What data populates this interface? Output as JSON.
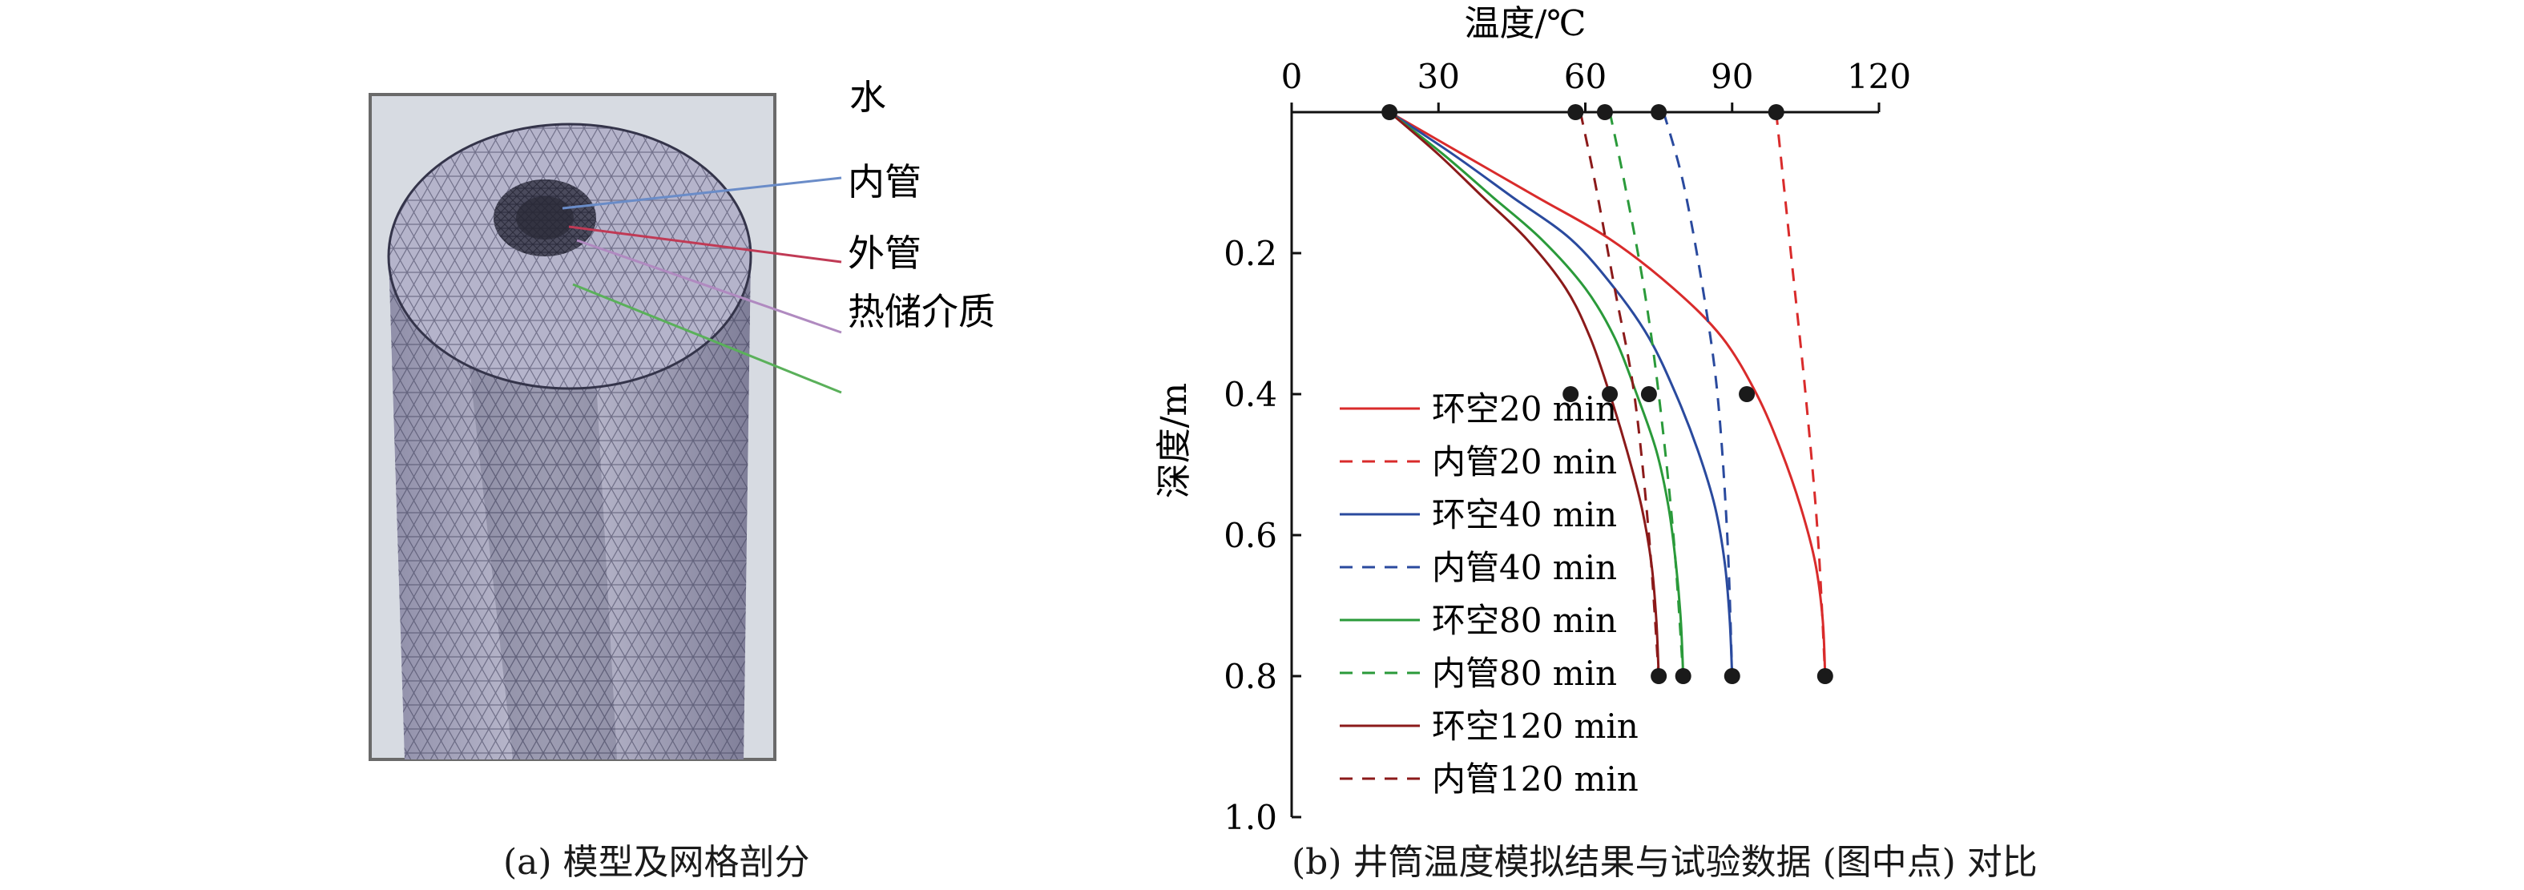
{
  "figure": {
    "panel_a": {
      "caption": "(a) 模型及网格剖分",
      "labels": {
        "water": "水",
        "inner_pipe": "内管",
        "outer_pipe": "外管",
        "medium": "热储介质"
      }
    },
    "panel_b": {
      "caption": "(b) 井筒温度模拟结果与试验数据 (图中点) 对比"
    }
  },
  "chart_data": {
    "type": "line",
    "title": "",
    "xlabel": "温度/℃",
    "ylabel": "深度/m",
    "xlim": [
      0,
      120
    ],
    "ylim": [
      0,
      1.0
    ],
    "y_inverted": true,
    "x_axis_position": "top",
    "x_ticks": [
      "0",
      "30",
      "60",
      "90",
      "120"
    ],
    "y_ticks": [
      "0.2",
      "0.4",
      "0.6",
      "0.8",
      "1.0"
    ],
    "grid": false,
    "legend_position": "left",
    "series": [
      {
        "name": "环空20 min",
        "color": "#d92b2b",
        "dash": "solid",
        "points": [
          [
            20,
            0
          ],
          [
            35,
            0.06
          ],
          [
            50,
            0.12
          ],
          [
            65,
            0.18
          ],
          [
            78,
            0.25
          ],
          [
            88,
            0.32
          ],
          [
            95,
            0.4
          ],
          [
            100,
            0.48
          ],
          [
            104,
            0.56
          ],
          [
            107,
            0.64
          ],
          [
            108.5,
            0.72
          ],
          [
            109,
            0.8
          ]
        ]
      },
      {
        "name": "内管20 min",
        "color": "#d92b2b",
        "dash": "dashed",
        "points": [
          [
            99,
            0
          ],
          [
            102,
            0.2
          ],
          [
            105,
            0.4
          ],
          [
            107.5,
            0.6
          ],
          [
            109,
            0.8
          ]
        ]
      },
      {
        "name": "环空40 min",
        "color": "#2a4a9e",
        "dash": "solid",
        "points": [
          [
            20,
            0
          ],
          [
            33,
            0.06
          ],
          [
            45,
            0.12
          ],
          [
            57,
            0.18
          ],
          [
            66,
            0.25
          ],
          [
            73,
            0.32
          ],
          [
            78.5,
            0.4
          ],
          [
            83,
            0.48
          ],
          [
            86.5,
            0.56
          ],
          [
            88.5,
            0.64
          ],
          [
            89.5,
            0.72
          ],
          [
            90,
            0.8
          ]
        ]
      },
      {
        "name": "内管40 min",
        "color": "#2a4a9e",
        "dash": "dashed",
        "points": [
          [
            76,
            0
          ],
          [
            80,
            0.1
          ],
          [
            84,
            0.25
          ],
          [
            87,
            0.4
          ],
          [
            89,
            0.6
          ],
          [
            90,
            0.8
          ]
        ]
      },
      {
        "name": "环空80 min",
        "color": "#2a9a3a",
        "dash": "solid",
        "points": [
          [
            20,
            0
          ],
          [
            31,
            0.06
          ],
          [
            41,
            0.12
          ],
          [
            51,
            0.18
          ],
          [
            60,
            0.25
          ],
          [
            66,
            0.32
          ],
          [
            70.5,
            0.4
          ],
          [
            74.5,
            0.48
          ],
          [
            77,
            0.56
          ],
          [
            78.5,
            0.64
          ],
          [
            79.5,
            0.72
          ],
          [
            80,
            0.8
          ]
        ]
      },
      {
        "name": "内管80 min",
        "color": "#2a9a3a",
        "dash": "dashed",
        "points": [
          [
            65,
            0
          ],
          [
            68,
            0.1
          ],
          [
            72,
            0.25
          ],
          [
            75,
            0.4
          ],
          [
            78,
            0.6
          ],
          [
            80,
            0.8
          ]
        ]
      },
      {
        "name": "环空120 min",
        "color": "#8b1a1a",
        "dash": "solid",
        "points": [
          [
            20,
            0
          ],
          [
            30,
            0.06
          ],
          [
            39,
            0.12
          ],
          [
            48,
            0.18
          ],
          [
            56,
            0.25
          ],
          [
            61,
            0.32
          ],
          [
            65,
            0.4
          ],
          [
            68.5,
            0.48
          ],
          [
            71.5,
            0.56
          ],
          [
            73.5,
            0.64
          ],
          [
            74.5,
            0.72
          ],
          [
            75,
            0.8
          ]
        ]
      },
      {
        "name": "内管120 min",
        "color": "#8b1a1a",
        "dash": "dashed",
        "points": [
          [
            59,
            0
          ],
          [
            62,
            0.1
          ],
          [
            66,
            0.25
          ],
          [
            70,
            0.4
          ],
          [
            73,
            0.6
          ],
          [
            75,
            0.8
          ]
        ]
      }
    ],
    "experimental_points": [
      [
        20,
        0
      ],
      [
        58,
        0
      ],
      [
        64,
        0
      ],
      [
        75,
        0
      ],
      [
        99,
        0
      ],
      [
        57,
        0.4
      ],
      [
        65,
        0.4
      ],
      [
        73,
        0.4
      ],
      [
        93,
        0.4
      ],
      [
        75,
        0.8
      ],
      [
        80,
        0.8
      ],
      [
        90,
        0.8
      ],
      [
        109,
        0.8
      ]
    ]
  }
}
